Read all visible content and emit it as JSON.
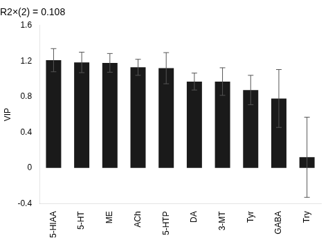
{
  "chart_data": {
    "type": "bar",
    "title": "R2×(2) = 0.108",
    "ylabel": "VIP",
    "categories": [
      "5-HIAA",
      "5-HT",
      "ME",
      "ACh",
      "5-HTP",
      "DA",
      "3-MT",
      "Tyr",
      "GABA",
      "Try"
    ],
    "values": [
      1.21,
      1.185,
      1.18,
      1.13,
      1.12,
      0.97,
      0.97,
      0.875,
      0.78,
      0.12
    ],
    "errors": [
      0.13,
      0.115,
      0.105,
      0.09,
      0.175,
      0.095,
      0.155,
      0.165,
      0.325,
      0.45
    ],
    "color": "#1a1a1a",
    "ylim": [
      -0.4,
      1.6
    ],
    "yticks": [
      -0.4,
      0,
      0.4,
      0.8,
      1.2,
      1.6
    ],
    "grid": false,
    "legend": false
  }
}
